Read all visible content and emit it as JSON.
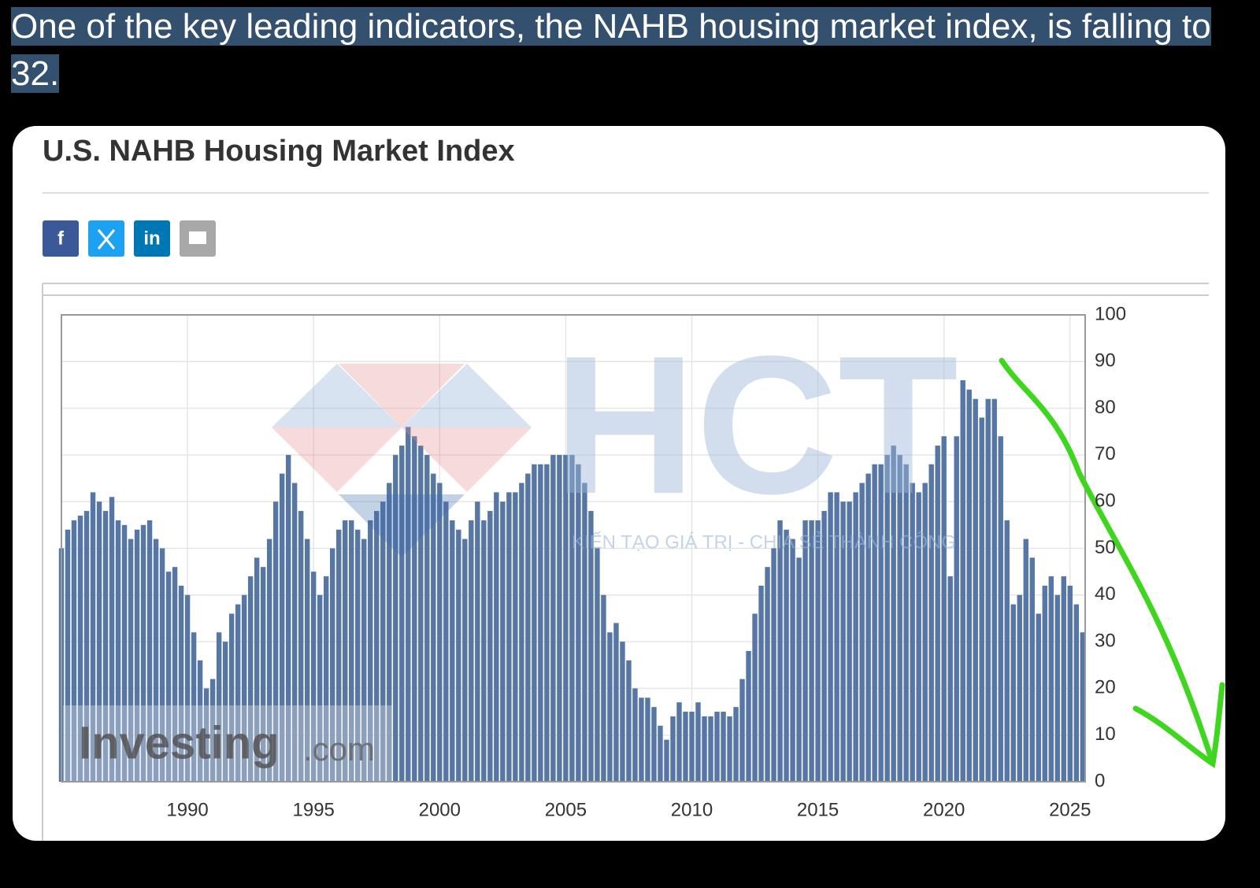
{
  "post_text": "One of the key leading indicators, the NAHB housing market index, is falling to 32.",
  "share_labels": [
    "f",
    "in"
  ],
  "overlay_watermark": {
    "logo": "HCT",
    "slogan": "KIẾN TẠO GIÁ TRỊ - CHIA SẺ THÀNH CÔNG"
  },
  "chart_data": {
    "type": "bar",
    "title": "U.S. NAHB Housing Market Index",
    "watermark": {
      "brand": "Investing",
      "suffix": ".com"
    },
    "color": "#5676a6",
    "x": [
      1985,
      1985.25,
      1985.5,
      1985.75,
      1986,
      1986.25,
      1986.5,
      1986.75,
      1987,
      1987.25,
      1987.5,
      1987.75,
      1988,
      1988.25,
      1988.5,
      1988.75,
      1989,
      1989.25,
      1989.5,
      1989.75,
      1990,
      1990.25,
      1990.5,
      1990.75,
      1991,
      1991.25,
      1991.5,
      1991.75,
      1992,
      1992.25,
      1992.5,
      1992.75,
      1993,
      1993.25,
      1993.5,
      1993.75,
      1994,
      1994.25,
      1994.5,
      1994.75,
      1995,
      1995.25,
      1995.5,
      1995.75,
      1996,
      1996.25,
      1996.5,
      1996.75,
      1997,
      1997.25,
      1997.5,
      1997.75,
      1998,
      1998.25,
      1998.5,
      1998.75,
      1999,
      1999.25,
      1999.5,
      1999.75,
      2000,
      2000.25,
      2000.5,
      2000.75,
      2001,
      2001.25,
      2001.5,
      2001.75,
      2002,
      2002.25,
      2002.5,
      2002.75,
      2003,
      2003.25,
      2003.5,
      2003.75,
      2004,
      2004.25,
      2004.5,
      2004.75,
      2005,
      2005.25,
      2005.5,
      2005.75,
      2006,
      2006.25,
      2006.5,
      2006.75,
      2007,
      2007.25,
      2007.5,
      2007.75,
      2008,
      2008.25,
      2008.5,
      2008.75,
      2009,
      2009.25,
      2009.5,
      2009.75,
      2010,
      2010.25,
      2010.5,
      2010.75,
      2011,
      2011.25,
      2011.5,
      2011.75,
      2012,
      2012.25,
      2012.5,
      2012.75,
      2013,
      2013.25,
      2013.5,
      2013.75,
      2014,
      2014.25,
      2014.5,
      2014.75,
      2015,
      2015.25,
      2015.5,
      2015.75,
      2016,
      2016.25,
      2016.5,
      2016.75,
      2017,
      2017.25,
      2017.5,
      2017.75,
      2018,
      2018.25,
      2018.5,
      2018.75,
      2019,
      2019.25,
      2019.5,
      2019.75,
      2020,
      2020.25,
      2020.5,
      2020.75,
      2021,
      2021.25,
      2021.5,
      2021.75,
      2022,
      2022.25,
      2022.5,
      2022.75,
      2023,
      2023.25,
      2023.5,
      2023.75,
      2024,
      2024.25,
      2024.5,
      2024.75,
      2025,
      2025.25,
      2025.5
    ],
    "values": [
      50,
      54,
      56,
      57,
      58,
      62,
      60,
      58,
      61,
      56,
      55,
      52,
      54,
      55,
      56,
      52,
      50,
      45,
      46,
      42,
      40,
      32,
      26,
      20,
      22,
      32,
      30,
      36,
      38,
      40,
      44,
      48,
      46,
      52,
      60,
      66,
      70,
      64,
      58,
      52,
      45,
      40,
      44,
      50,
      54,
      56,
      56,
      54,
      52,
      56,
      58,
      60,
      64,
      70,
      72,
      76,
      74,
      72,
      70,
      66,
      64,
      60,
      56,
      54,
      52,
      56,
      60,
      56,
      58,
      62,
      60,
      62,
      62,
      64,
      66,
      68,
      68,
      68,
      70,
      70,
      70,
      70,
      68,
      64,
      58,
      50,
      40,
      32,
      34,
      30,
      26,
      20,
      18,
      18,
      16,
      12,
      9,
      14,
      17,
      15,
      15,
      17,
      14,
      14,
      15,
      15,
      14,
      16,
      22,
      28,
      36,
      42,
      46,
      50,
      56,
      54,
      52,
      48,
      56,
      56,
      56,
      58,
      62,
      62,
      60,
      60,
      62,
      64,
      66,
      68,
      68,
      70,
      72,
      70,
      68,
      64,
      62,
      64,
      68,
      72,
      74,
      44,
      74,
      86,
      84,
      82,
      78,
      82,
      82,
      74,
      56,
      38,
      40,
      52,
      48,
      36,
      42,
      44,
      40,
      44,
      42,
      38,
      32
    ],
    "xlim": [
      1985,
      2025.6
    ],
    "ylim": [
      0,
      100
    ],
    "xticks": [
      1990,
      1995,
      2000,
      2005,
      2010,
      2015,
      2020,
      2025
    ],
    "yticks": [
      0,
      10,
      20,
      30,
      40,
      50,
      60,
      70,
      80,
      90,
      100
    ],
    "grid": true
  }
}
